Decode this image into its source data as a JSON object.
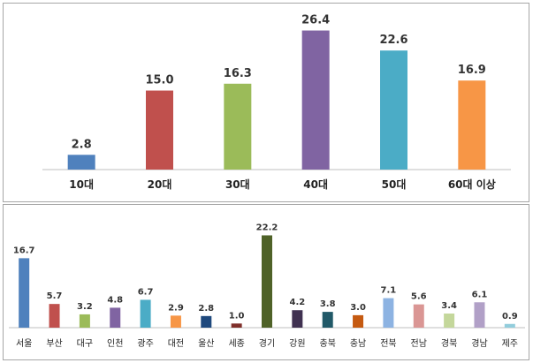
{
  "chart_data": [
    {
      "type": "bar",
      "categories": [
        "10대",
        "20대",
        "30대",
        "40대",
        "50대",
        "60대 이상"
      ],
      "values": [
        2.8,
        15.0,
        16.3,
        26.4,
        22.6,
        16.9
      ],
      "value_labels": [
        "2.8",
        "15.0",
        "16.3",
        "26.4",
        "22.6",
        "16.9"
      ],
      "colors": [
        "#4f81bd",
        "#c0504d",
        "#9bbb59",
        "#8064a2",
        "#4bacc6",
        "#f79646"
      ],
      "title": "",
      "xlabel": "",
      "ylabel": "",
      "ylim": [
        0,
        28
      ],
      "grid": false,
      "legend": "none"
    },
    {
      "type": "bar",
      "categories": [
        "서울",
        "부산",
        "대구",
        "인천",
        "광주",
        "대전",
        "울산",
        "세종",
        "경기",
        "강원",
        "충북",
        "충남",
        "전북",
        "전남",
        "경북",
        "경남",
        "제주"
      ],
      "values": [
        16.7,
        5.7,
        3.2,
        4.8,
        6.7,
        2.9,
        2.8,
        1.0,
        22.2,
        4.2,
        3.8,
        3.0,
        7.1,
        5.6,
        3.4,
        6.1,
        0.9
      ],
      "value_labels": [
        "16.7",
        "5.7",
        "3.2",
        "4.8",
        "6.7",
        "2.9",
        "2.8",
        "1.0",
        "22.2",
        "4.2",
        "3.8",
        "3.0",
        "7.1",
        "5.6",
        "3.4",
        "6.1",
        "0.9"
      ],
      "colors": [
        "#4f81bd",
        "#c0504d",
        "#9bbb59",
        "#8064a2",
        "#4bacc6",
        "#f79646",
        "#1f497d",
        "#7f2f2a",
        "#4f6228",
        "#403151",
        "#215968",
        "#c55a11",
        "#8db3e2",
        "#da9694",
        "#c4d79b",
        "#b1a0c7",
        "#92cddc"
      ],
      "title": "",
      "xlabel": "",
      "ylabel": "",
      "ylim": [
        0,
        24
      ],
      "grid": false,
      "legend": "none"
    }
  ]
}
